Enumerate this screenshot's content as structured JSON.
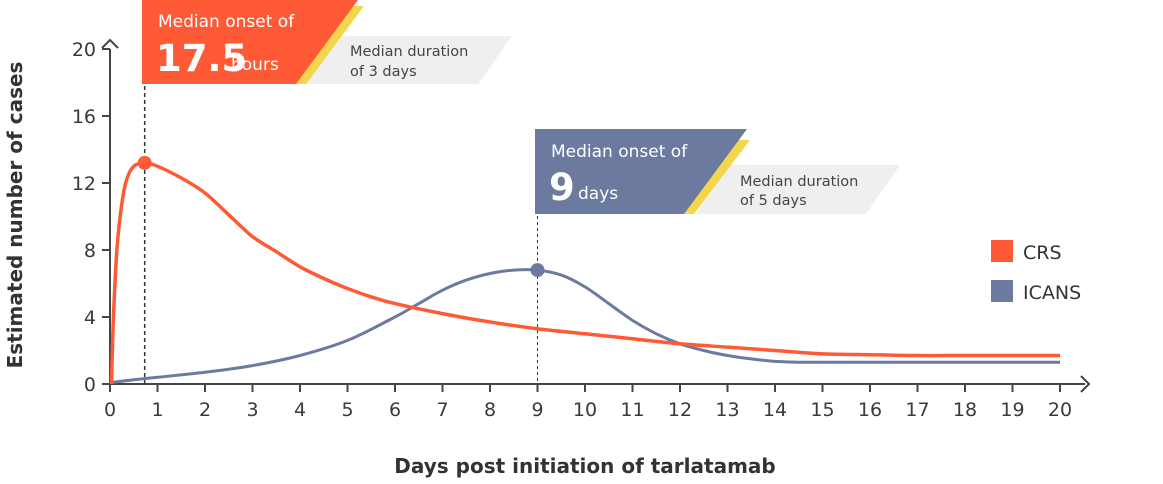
{
  "chart_data": {
    "type": "line",
    "xlabel": "Days post initiation of tarlatamab",
    "ylabel": "Estimated number of cases",
    "xlim": [
      0,
      20
    ],
    "ylim": [
      0,
      20
    ],
    "x_ticks": [
      0,
      1,
      2,
      3,
      4,
      5,
      6,
      7,
      8,
      9,
      10,
      11,
      12,
      13,
      14,
      15,
      16,
      17,
      18,
      19,
      20
    ],
    "y_ticks": [
      0,
      4,
      8,
      12,
      16,
      20
    ],
    "grid": false,
    "legend_position": "right",
    "series": [
      {
        "name": "CRS",
        "color": "#ff5a36",
        "x": [
          0.03,
          0.08,
          0.15,
          0.25,
          0.35,
          0.5,
          0.73,
          1.0,
          1.5,
          2,
          2.5,
          3,
          3.5,
          4,
          4.5,
          5,
          5.5,
          6,
          7,
          8,
          9,
          10,
          11,
          12,
          13,
          14,
          15,
          16,
          17,
          18,
          19,
          20
        ],
        "y": [
          0,
          4.5,
          8.2,
          10.8,
          12.2,
          13.0,
          13.2,
          13.0,
          12.3,
          11.4,
          10.1,
          8.8,
          7.9,
          7.0,
          6.3,
          5.7,
          5.2,
          4.8,
          4.2,
          3.7,
          3.3,
          3.0,
          2.7,
          2.4,
          2.2,
          2.0,
          1.8,
          1.75,
          1.7,
          1.7,
          1.7,
          1.7
        ],
        "marker": {
          "x": 0.73,
          "y": 13.2
        }
      },
      {
        "name": "ICANS",
        "color": "#6b7a9e",
        "x": [
          0.05,
          0.5,
          1,
          2,
          3,
          4,
          5,
          6,
          6.5,
          7,
          7.5,
          8,
          8.5,
          9,
          9.5,
          10,
          10.5,
          11,
          11.5,
          12,
          12.5,
          13,
          13.5,
          14,
          14.5,
          15,
          16,
          17,
          18,
          19,
          20
        ],
        "y": [
          0.1,
          0.25,
          0.4,
          0.7,
          1.1,
          1.7,
          2.6,
          4.0,
          4.8,
          5.6,
          6.2,
          6.6,
          6.8,
          6.8,
          6.5,
          5.8,
          4.8,
          3.8,
          3.0,
          2.4,
          2.0,
          1.7,
          1.5,
          1.35,
          1.3,
          1.3,
          1.3,
          1.3,
          1.3,
          1.3,
          1.3
        ],
        "marker": {
          "x": 9,
          "y": 6.8
        }
      }
    ],
    "annotations": {
      "crs": {
        "line1": "Median onset of",
        "value": "17.5",
        "unit": "hours",
        "duration_line1": "Median duration",
        "duration_line2": "of 3 days"
      },
      "icans": {
        "line1": "Median onset of",
        "value": "9",
        "unit": "days",
        "duration_line1": "Median duration",
        "duration_line2": "of 5 days"
      }
    },
    "legend": [
      {
        "label": "CRS",
        "color": "#ff5a36"
      },
      {
        "label": "ICANS",
        "color": "#6b7a9e"
      }
    ]
  },
  "colors": {
    "axis": "#444444",
    "crs": "#ff5a36",
    "icans": "#6b7a9e",
    "accent_yellow": "#f2d64b",
    "duration_bg": "#efefef"
  }
}
